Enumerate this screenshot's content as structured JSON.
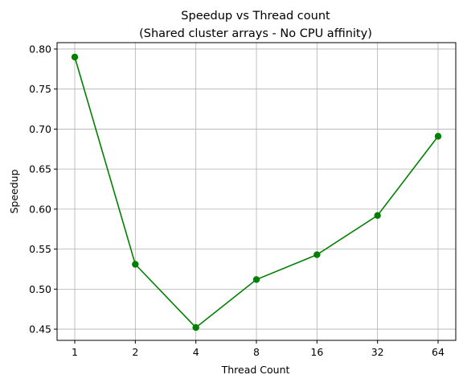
{
  "chart_data": {
    "type": "line",
    "title": "Speedup vs Thread count",
    "subtitle": "(Shared cluster arrays - No CPU affinity)",
    "xlabel": "Thread Count",
    "ylabel": "Speedup",
    "categories": [
      "1",
      "2",
      "4",
      "8",
      "16",
      "32",
      "64"
    ],
    "series": [
      {
        "values": [
          0.79,
          0.531,
          0.452,
          0.512,
          0.543,
          0.592,
          0.691
        ],
        "color": "#008000",
        "marker": "circle"
      }
    ],
    "ylim": [
      0.436,
      0.808
    ],
    "yticks": [
      "0.45",
      "0.50",
      "0.55",
      "0.60",
      "0.65",
      "0.70",
      "0.75",
      "0.80"
    ],
    "grid": true
  }
}
